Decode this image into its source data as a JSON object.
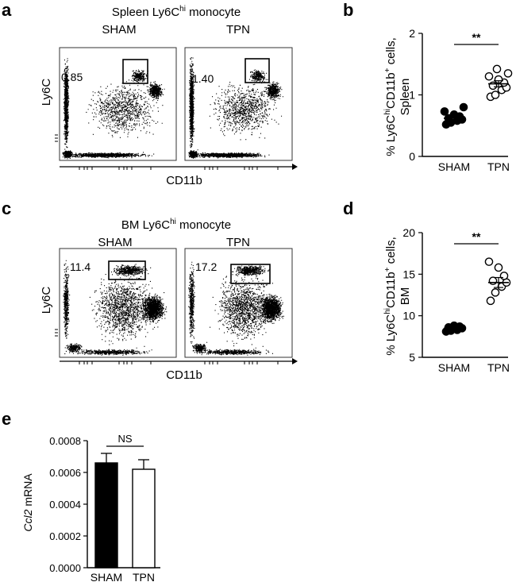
{
  "panel_letters": {
    "a": "a",
    "b": "b",
    "c": "c",
    "d": "d",
    "e": "e"
  },
  "flow_a": {
    "title_prefix": "Spleen Ly6C",
    "title_sup": "hi",
    "title_suffix": " monocyte",
    "groups": [
      "SHAM",
      "TPN"
    ],
    "gate_values": [
      "0.85",
      "1.40"
    ],
    "x_label": "CD11b",
    "y_label": "Ly6C"
  },
  "flow_c": {
    "title_prefix": "BM Ly6C",
    "title_sup": "hi",
    "title_suffix": " monocyte",
    "groups": [
      "SHAM",
      "TPN"
    ],
    "gate_values": [
      "11.4",
      "17.2"
    ],
    "x_label": "CD11b",
    "y_label": "Ly6C"
  },
  "chart_data": [
    {
      "panel": "b",
      "type": "scatter",
      "categories": [
        "SHAM",
        "TPN"
      ],
      "ylabel_parts": [
        "% Ly6C",
        "hi",
        "CD11b",
        "+",
        " cells,",
        "Spleen"
      ],
      "yticks": [
        "0",
        "1",
        "2"
      ],
      "ylim": [
        0,
        2
      ],
      "significance": "**",
      "series": [
        {
          "name": "SHAM",
          "marker": "filled",
          "mean": 0.62,
          "sem": 0.04,
          "values": [
            0.52,
            0.55,
            0.58,
            0.6,
            0.62,
            0.65,
            0.68,
            0.73,
            0.8
          ]
        },
        {
          "name": "TPN",
          "marker": "open",
          "mean": 1.18,
          "sem": 0.05,
          "values": [
            0.97,
            1.0,
            1.08,
            1.12,
            1.15,
            1.2,
            1.25,
            1.3,
            1.35,
            1.42
          ]
        }
      ]
    },
    {
      "panel": "d",
      "type": "scatter",
      "categories": [
        "SHAM",
        "TPN"
      ],
      "ylabel_parts": [
        "% Ly6C",
        "hi",
        "CD11b",
        "+",
        " cells,",
        "BM"
      ],
      "yticks": [
        "5",
        "10",
        "15",
        "20"
      ],
      "ylim": [
        5,
        20
      ],
      "significance": "**",
      "series": [
        {
          "name": "SHAM",
          "marker": "filled",
          "mean": 8.5,
          "sem": 0.15,
          "values": [
            8.1,
            8.2,
            8.3,
            8.5,
            8.6,
            8.7,
            8.8
          ]
        },
        {
          "name": "TPN",
          "marker": "open",
          "mean": 14.0,
          "sem": 0.6,
          "values": [
            11.8,
            12.8,
            13.5,
            14.0,
            14.2,
            14.8,
            15.8,
            16.5
          ]
        }
      ]
    },
    {
      "panel": "e",
      "type": "bar",
      "categories": [
        "SHAM",
        "TPN"
      ],
      "values": [
        0.00066,
        0.00062
      ],
      "errors": [
        6e-05,
        6e-05
      ],
      "bar_fills": [
        "#000000",
        "#ffffff"
      ],
      "ylabel_italic": "Ccl2",
      "ylabel_rest": " mRNA",
      "yticks": [
        "0.0000",
        "0.0002",
        "0.0004",
        "0.0006",
        "0.0008"
      ],
      "ylim": [
        0,
        0.0008
      ],
      "significance": "NS"
    }
  ]
}
